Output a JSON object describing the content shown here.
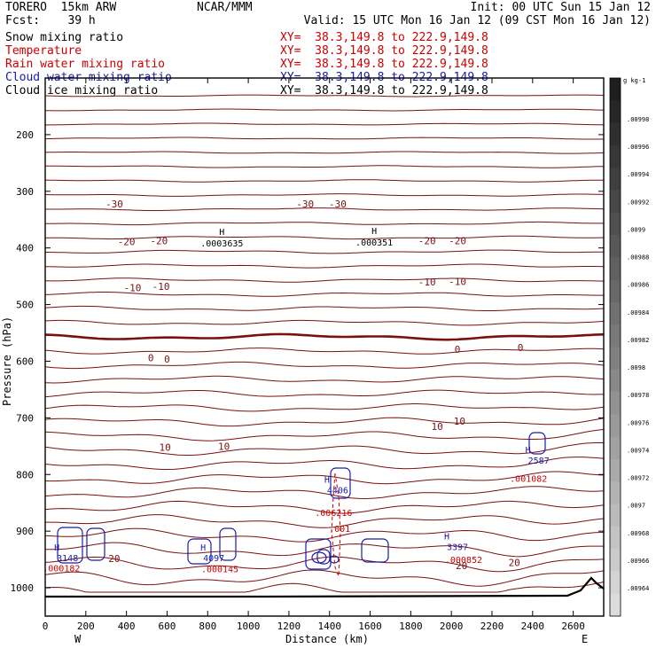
{
  "header": {
    "model": "TORERO  15km ARW",
    "center": "NCAR/MMM",
    "init": "Init: 00 UTC Sun 15 Jan 12",
    "fcst": "Fcst:    39 h",
    "valid": "Valid: 15 UTC Mon 16 Jan 12 (09 CST Mon 16 Jan 12)"
  },
  "fields": [
    {
      "name": "Snow mixing ratio",
      "xy": "XY=  38.3,149.8 to 222.9,149.8",
      "color": "#000000"
    },
    {
      "name": "Temperature",
      "xy": "XY=  38.3,149.8 to 222.9,149.8",
      "color": "#cc0000"
    },
    {
      "name": "Rain water mixing ratio",
      "xy": "XY=  38.3,149.8 to 222.9,149.8",
      "color": "#cc0000"
    },
    {
      "name": "Cloud water mixing ratio",
      "xy": "XY=  38.3,149.8 to 222.9,149.8",
      "color": "#1a1aa6"
    },
    {
      "name": "Cloud ice mixing ratio",
      "xy": "XY=  38.3,149.8 to 222.9,149.8",
      "color": "#000000"
    }
  ],
  "colors": {
    "temperature": "#7a1010",
    "freezing_line": "#7a1010",
    "rain": "#cc0000",
    "cloud_water": "#1a1aa6",
    "terrain": "#000000"
  },
  "chart_data": {
    "type": "contour",
    "xlabel": "Distance (km)",
    "ylabel": "Pressure (hPa)",
    "xlim": [
      0,
      2750
    ],
    "ylim": [
      1050,
      100
    ],
    "x_ticks": [
      0,
      200,
      400,
      600,
      800,
      1000,
      1200,
      1400,
      1600,
      1800,
      2000,
      2200,
      2400,
      2600
    ],
    "y_ticks": [
      200,
      300,
      400,
      500,
      600,
      700,
      800,
      900,
      1000
    ],
    "x_end_labels": {
      "left": "W",
      "right": "E"
    },
    "temperature_contour_labels": [
      {
        "text": "-30",
        "x": 340,
        "p": 322
      },
      {
        "text": "-30",
        "x": 1280,
        "p": 322
      },
      {
        "text": "-30",
        "x": 1440,
        "p": 322
      },
      {
        "text": "-20",
        "x": 400,
        "p": 389
      },
      {
        "text": "-20",
        "x": 560,
        "p": 387
      },
      {
        "text": "-20",
        "x": 1880,
        "p": 387
      },
      {
        "text": "-20",
        "x": 2030,
        "p": 387
      },
      {
        "text": "-10",
        "x": 430,
        "p": 470
      },
      {
        "text": "-10",
        "x": 570,
        "p": 468
      },
      {
        "text": "-10",
        "x": 1880,
        "p": 460
      },
      {
        "text": "-10",
        "x": 2030,
        "p": 459
      },
      {
        "text": "0",
        "x": 520,
        "p": 594
      },
      {
        "text": "0",
        "x": 600,
        "p": 596
      },
      {
        "text": "0",
        "x": 2030,
        "p": 579
      },
      {
        "text": "0",
        "x": 2340,
        "p": 576
      },
      {
        "text": "10",
        "x": 590,
        "p": 752
      },
      {
        "text": "10",
        "x": 880,
        "p": 750
      },
      {
        "text": "10",
        "x": 1930,
        "p": 715
      },
      {
        "text": "10",
        "x": 2040,
        "p": 706
      },
      {
        "text": "20",
        "x": 340,
        "p": 948
      },
      {
        "text": "20",
        "x": 2050,
        "p": 961
      },
      {
        "text": "20",
        "x": 2310,
        "p": 955
      }
    ],
    "snow_maxima": [
      {
        "text": ".0003635",
        "x": 870,
        "p": 393
      },
      {
        "text": ".000351",
        "x": 1620,
        "p": 391
      }
    ],
    "cloud_water_maxima": [
      {
        "text": "3148",
        "x": 110,
        "p": 950
      },
      {
        "text": "4097",
        "x": 830,
        "p": 950
      },
      {
        "text": "4406",
        "x": 1440,
        "p": 830
      },
      {
        "text": "3397",
        "x": 2030,
        "p": 930
      },
      {
        "text": "2587",
        "x": 2430,
        "p": 778
      }
    ],
    "rain_maxima": [
      {
        "text": ".000182",
        "x": 80,
        "p": 965
      },
      {
        "text": ".000145",
        "x": 860,
        "p": 966
      },
      {
        "text": ".006216",
        "x": 1420,
        "p": 867
      },
      {
        "text": ".001",
        "x": 1450,
        "p": 895
      },
      {
        "text": ".000852",
        "x": 2060,
        "p": 950
      },
      {
        "text": ".001082",
        "x": 2380,
        "p": 807
      }
    ],
    "colorbar": {
      "unit": "g kg-1",
      "labels": [
        ".00998",
        ".00996",
        ".00994",
        ".00992",
        ".0099",
        ".00988",
        ".00986",
        ".00984",
        ".00982",
        ".0098",
        ".00978",
        ".00976",
        ".00974",
        ".00972",
        ".0097",
        ".00968",
        ".00966",
        ".00964"
      ]
    }
  }
}
